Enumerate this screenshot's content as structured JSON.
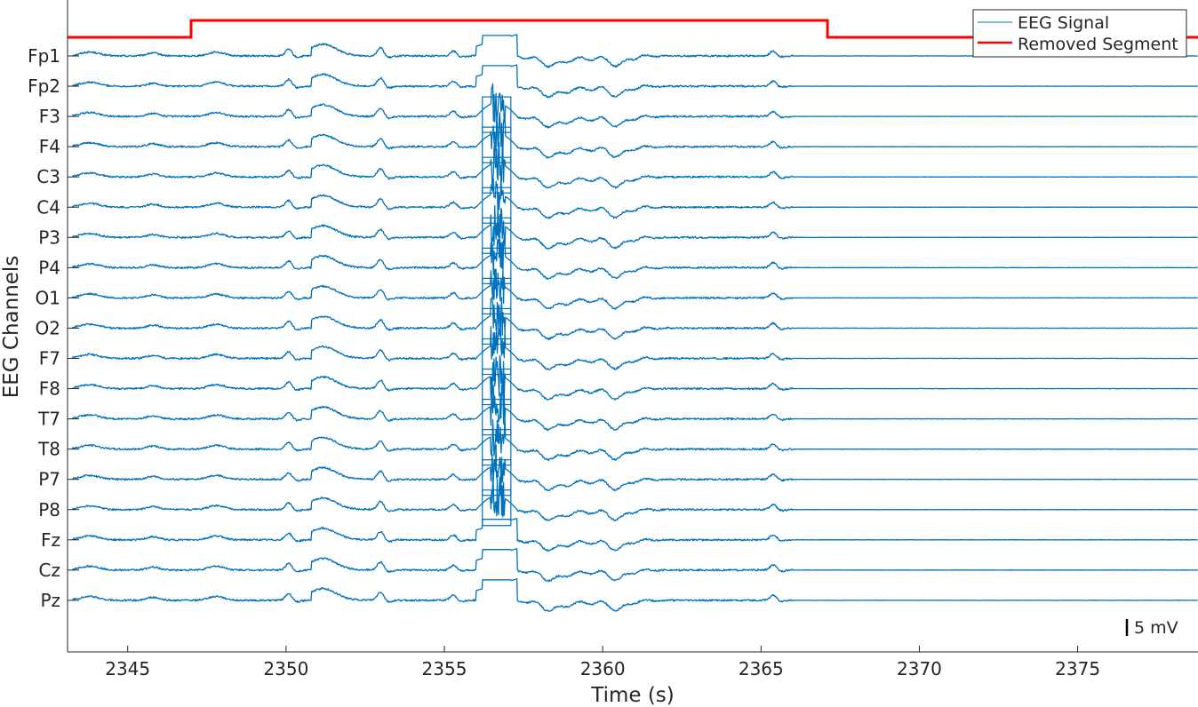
{
  "chart_data": {
    "type": "line",
    "title": "",
    "xlabel": "Time (s)",
    "ylabel": "EEG Channels",
    "xlim": [
      2343.1,
      2378.8
    ],
    "xticks": [
      2345,
      2350,
      2355,
      2360,
      2365,
      2370,
      2375
    ],
    "channels": [
      "Fp1",
      "Fp2",
      "F3",
      "F4",
      "C3",
      "C4",
      "P3",
      "P4",
      "O1",
      "O2",
      "F7",
      "F8",
      "T7",
      "T8",
      "P7",
      "P8",
      "Fz",
      "Cz",
      "Pz"
    ],
    "scale_bar": {
      "value": 5,
      "unit": "mV",
      "label": "5 mV"
    },
    "grid": false,
    "legend_position": "top-right",
    "series": [
      {
        "name": "EEG Signal",
        "color": "#0072BD",
        "style": "thin line"
      },
      {
        "name": "Removed Segment",
        "color": "#FF0000",
        "style": "thick line"
      }
    ],
    "removed_segment": {
      "x": [
        2343.1,
        2347.0,
        2347.0,
        2367.1,
        2367.1,
        2378.8
      ],
      "level": [
        0,
        0,
        1,
        1,
        0,
        0
      ]
    },
    "events": [
      {
        "t": 2343.8,
        "kind": "wave",
        "amp": 0.2,
        "width": 0.6
      },
      {
        "t": 2345.8,
        "kind": "wave",
        "amp": 0.15,
        "width": 0.4
      },
      {
        "t": 2347.8,
        "kind": "wave",
        "amp": 0.2,
        "width": 0.5
      },
      {
        "t": 2350.1,
        "kind": "spike",
        "amp": 0.4
      },
      {
        "t": 2351.0,
        "kind": "bump",
        "amp": 0.5,
        "width": 2.2
      },
      {
        "t": 2353.0,
        "kind": "spike",
        "amp": 0.5
      },
      {
        "t": 2355.3,
        "kind": "spike",
        "amp": 0.3
      },
      {
        "t": 2356.6,
        "kind": "artifact",
        "amp": 1.1
      },
      {
        "t": 2358.4,
        "kind": "dip",
        "amp": -0.35,
        "width": 0.6
      },
      {
        "t": 2360.5,
        "kind": "dip",
        "amp": -0.4,
        "width": 0.5
      },
      {
        "t": 2365.4,
        "kind": "spike",
        "amp": 0.3
      }
    ],
    "artifact_window": [
      2356.0,
      2357.3
    ]
  }
}
